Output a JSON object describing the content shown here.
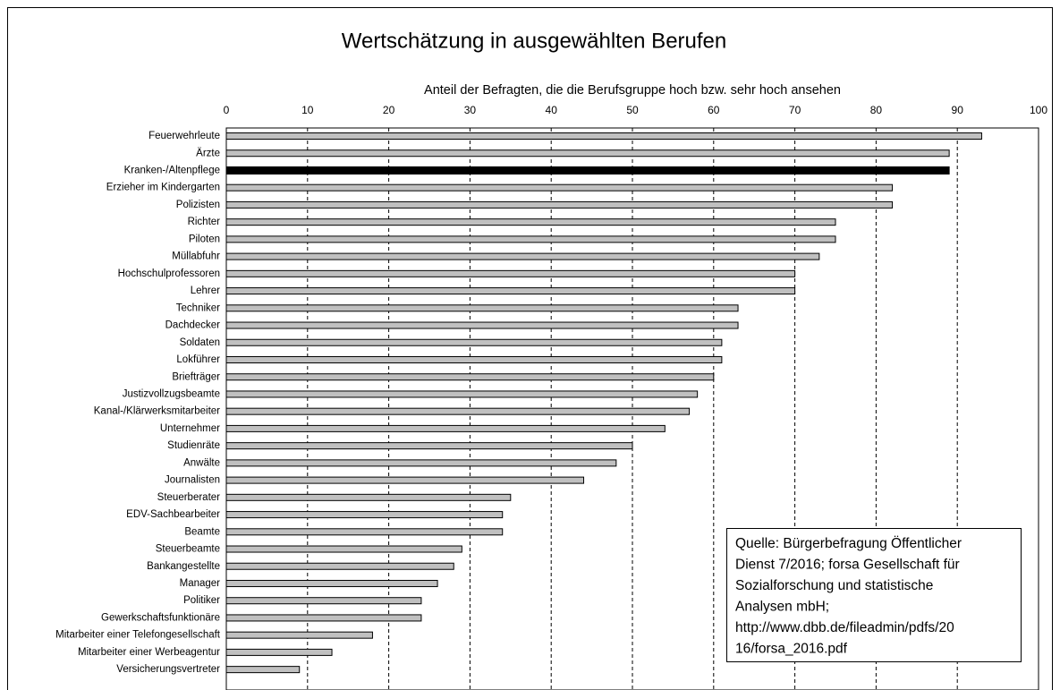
{
  "chart_data": {
    "type": "barh",
    "title": "Wertschätzung in ausgewählten Berufen",
    "xlabel": "Anteil der Befragten, die die Berufsgruppe hoch bzw. sehr hoch ansehen",
    "categories": [
      "Feuerwehrleute",
      "Ärzte",
      "Kranken-/Altenpflege",
      "Erzieher im Kindergarten",
      "Polizisten",
      "Richter",
      "Piloten",
      "Müllabfuhr",
      "Hochschulprofessoren",
      "Lehrer",
      "Techniker",
      "Dachdecker",
      "Soldaten",
      "Lokführer",
      "Briefträger",
      "Justizvollzugsbeamte",
      "Kanal-/Klärwerksmitarbeiter",
      "Unternehmer",
      "Studienräte",
      "Anwälte",
      "Journalisten",
      "Steuerberater",
      "EDV-Sachbearbeiter",
      "Beamte",
      "Steuerbeamte",
      "Bankangestellte",
      "Manager",
      "Politiker",
      "Gewerkschaftsfunktionäre",
      "Mitarbeiter einer Telefongesellschaft",
      "Mitarbeiter einer Werbeagentur",
      "Versicherungsvertreter"
    ],
    "values": [
      93,
      89,
      89,
      82,
      82,
      75,
      75,
      73,
      70,
      70,
      63,
      63,
      61,
      61,
      60,
      58,
      57,
      54,
      50,
      48,
      44,
      35,
      34,
      34,
      29,
      28,
      26,
      24,
      24,
      18,
      13,
      9
    ],
    "color": "#c0c0c0",
    "highlight": {
      "index": 2,
      "color": "#000000"
    },
    "xlim": [
      0,
      100
    ],
    "xticks": [
      0,
      10,
      20,
      30,
      40,
      50,
      60,
      70,
      80,
      90,
      100
    ],
    "grid": true,
    "annotation": [
      "Quelle: Bürgerbefragung Öffentlicher",
      "Dienst 7/2016; forsa Gesellschaft für",
      "Sozialforschung und statistische",
      "Analysen mbH;",
      "http://www.dbb.de/fileadmin/pdfs/20",
      "16/forsa_2016.pdf"
    ]
  }
}
